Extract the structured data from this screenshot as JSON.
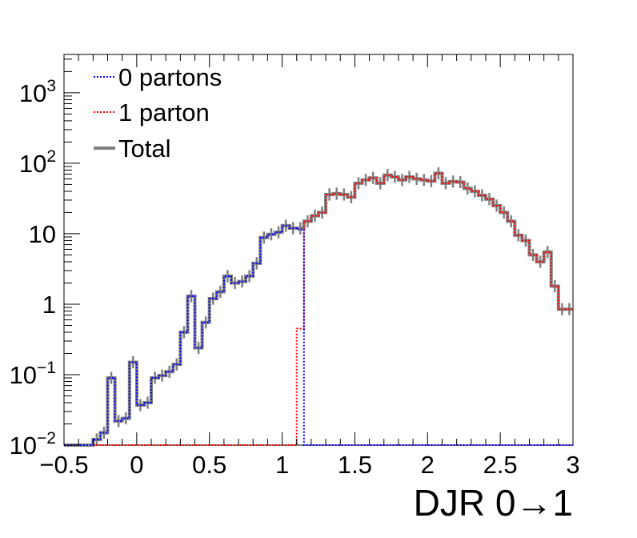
{
  "chart_data": {
    "type": "line",
    "xlabel": "DJR 0→1",
    "ylabel": "",
    "log_y": true,
    "xlim": [
      -0.5,
      3.0
    ],
    "ylim": [
      0.01,
      3500
    ],
    "x_ticks": [
      "−0.5",
      "0",
      "0.5",
      "1",
      "1.5",
      "2",
      "2.5",
      "3"
    ],
    "x_tick_values": [
      -0.5,
      0,
      0.5,
      1,
      1.5,
      2,
      2.5,
      3
    ],
    "y_ticks": [
      {
        "value": 0.01,
        "base": "10",
        "exp": "−2"
      },
      {
        "value": 0.1,
        "base": "10",
        "exp": "−1"
      },
      {
        "value": 1,
        "base": "1",
        "exp": ""
      },
      {
        "value": 10,
        "base": "10",
        "exp": ""
      },
      {
        "value": 100,
        "base": "10",
        "exp": "2"
      },
      {
        "value": 1000,
        "base": "10",
        "exp": "3"
      }
    ],
    "grid": false,
    "legend_position": "top-left",
    "bin_width": 0.05,
    "series": [
      {
        "name": "0 partons",
        "color": "#0000ff",
        "style": "dotted",
        "bins": [
          {
            "x0": -0.5,
            "x1": -0.3,
            "y": 0.01
          },
          {
            "x0": -0.3,
            "x1": -0.25,
            "y": 0.012
          },
          {
            "x0": -0.25,
            "x1": -0.2,
            "y": 0.015
          },
          {
            "x0": -0.2,
            "x1": -0.15,
            "y": 0.09
          },
          {
            "x0": -0.15,
            "x1": -0.1,
            "y": 0.022
          },
          {
            "x0": -0.1,
            "x1": -0.05,
            "y": 0.024
          },
          {
            "x0": -0.05,
            "x1": 0.0,
            "y": 0.15
          },
          {
            "x0": 0.0,
            "x1": 0.05,
            "y": 0.037
          },
          {
            "x0": 0.05,
            "x1": 0.1,
            "y": 0.04
          },
          {
            "x0": 0.1,
            "x1": 0.15,
            "y": 0.09
          },
          {
            "x0": 0.15,
            "x1": 0.2,
            "y": 0.097
          },
          {
            "x0": 0.2,
            "x1": 0.25,
            "y": 0.11
          },
          {
            "x0": 0.25,
            "x1": 0.3,
            "y": 0.14
          },
          {
            "x0": 0.3,
            "x1": 0.35,
            "y": 0.4
          },
          {
            "x0": 0.35,
            "x1": 0.4,
            "y": 1.3
          },
          {
            "x0": 0.4,
            "x1": 0.45,
            "y": 0.24
          },
          {
            "x0": 0.45,
            "x1": 0.5,
            "y": 0.55
          },
          {
            "x0": 0.5,
            "x1": 0.55,
            "y": 1.2
          },
          {
            "x0": 0.55,
            "x1": 0.6,
            "y": 1.5
          },
          {
            "x0": 0.6,
            "x1": 0.65,
            "y": 2.5
          },
          {
            "x0": 0.65,
            "x1": 0.7,
            "y": 2.0
          },
          {
            "x0": 0.7,
            "x1": 0.75,
            "y": 2.1
          },
          {
            "x0": 0.75,
            "x1": 0.8,
            "y": 2.5
          },
          {
            "x0": 0.8,
            "x1": 0.85,
            "y": 3.8
          },
          {
            "x0": 0.85,
            "x1": 0.9,
            "y": 8.8
          },
          {
            "x0": 0.9,
            "x1": 0.95,
            "y": 9.8
          },
          {
            "x0": 0.95,
            "x1": 1.0,
            "y": 10.5
          },
          {
            "x0": 1.0,
            "x1": 1.05,
            "y": 13.0
          },
          {
            "x0": 1.05,
            "x1": 1.1,
            "y": 12.0
          },
          {
            "x0": 1.1,
            "x1": 1.15,
            "y": 11.5
          },
          {
            "x0": 1.15,
            "x1": 1.2,
            "y": 0.01
          },
          {
            "x0": 1.2,
            "x1": 3.0,
            "y": 0.01
          }
        ]
      },
      {
        "name": "1 parton",
        "color": "#ff0000",
        "style": "dotted",
        "bins": [
          {
            "x0": -0.5,
            "x1": 1.1,
            "y": 0.01
          },
          {
            "x0": 1.1,
            "x1": 1.15,
            "y": 0.45
          },
          {
            "x0": 1.15,
            "x1": 1.2,
            "y": 15.0
          },
          {
            "x0": 1.2,
            "x1": 1.25,
            "y": 18.0
          },
          {
            "x0": 1.25,
            "x1": 1.3,
            "y": 20.0
          },
          {
            "x0": 1.3,
            "x1": 1.35,
            "y": 36.0
          },
          {
            "x0": 1.35,
            "x1": 1.4,
            "y": 37.0
          },
          {
            "x0": 1.4,
            "x1": 1.45,
            "y": 36.0
          },
          {
            "x0": 1.45,
            "x1": 1.5,
            "y": 33.0
          },
          {
            "x0": 1.5,
            "x1": 1.55,
            "y": 52.0
          },
          {
            "x0": 1.55,
            "x1": 1.6,
            "y": 58.0
          },
          {
            "x0": 1.6,
            "x1": 1.65,
            "y": 62.0
          },
          {
            "x0": 1.65,
            "x1": 1.7,
            "y": 52.0
          },
          {
            "x0": 1.7,
            "x1": 1.75,
            "y": 68.0
          },
          {
            "x0": 1.75,
            "x1": 1.8,
            "y": 64.0
          },
          {
            "x0": 1.8,
            "x1": 1.85,
            "y": 58.0
          },
          {
            "x0": 1.85,
            "x1": 1.9,
            "y": 64.0
          },
          {
            "x0": 1.9,
            "x1": 1.95,
            "y": 60.0
          },
          {
            "x0": 1.95,
            "x1": 2.0,
            "y": 58.0
          },
          {
            "x0": 2.0,
            "x1": 2.05,
            "y": 56.0
          },
          {
            "x0": 2.05,
            "x1": 2.1,
            "y": 72.0
          },
          {
            "x0": 2.1,
            "x1": 2.15,
            "y": 52.0
          },
          {
            "x0": 2.15,
            "x1": 2.2,
            "y": 55.0
          },
          {
            "x0": 2.2,
            "x1": 2.25,
            "y": 54.0
          },
          {
            "x0": 2.25,
            "x1": 2.3,
            "y": 44.0
          },
          {
            "x0": 2.3,
            "x1": 2.35,
            "y": 40.0
          },
          {
            "x0": 2.35,
            "x1": 2.4,
            "y": 35.0
          },
          {
            "x0": 2.4,
            "x1": 2.45,
            "y": 31.0
          },
          {
            "x0": 2.45,
            "x1": 2.5,
            "y": 25.0
          },
          {
            "x0": 2.5,
            "x1": 2.55,
            "y": 20.0
          },
          {
            "x0": 2.55,
            "x1": 2.6,
            "y": 15.0
          },
          {
            "x0": 2.6,
            "x1": 2.65,
            "y": 9.5
          },
          {
            "x0": 2.65,
            "x1": 2.7,
            "y": 8.0
          },
          {
            "x0": 2.7,
            "x1": 2.75,
            "y": 5.0
          },
          {
            "x0": 2.75,
            "x1": 2.8,
            "y": 4.0
          },
          {
            "x0": 2.8,
            "x1": 2.85,
            "y": 5.5
          },
          {
            "x0": 2.85,
            "x1": 2.9,
            "y": 1.8
          },
          {
            "x0": 2.9,
            "x1": 2.95,
            "y": 0.85
          },
          {
            "x0": 2.95,
            "x1": 3.0,
            "y": 0.85
          }
        ]
      },
      {
        "name": "Total",
        "color": "#808080",
        "style": "solid",
        "note_hidden": ""
      }
    ]
  }
}
